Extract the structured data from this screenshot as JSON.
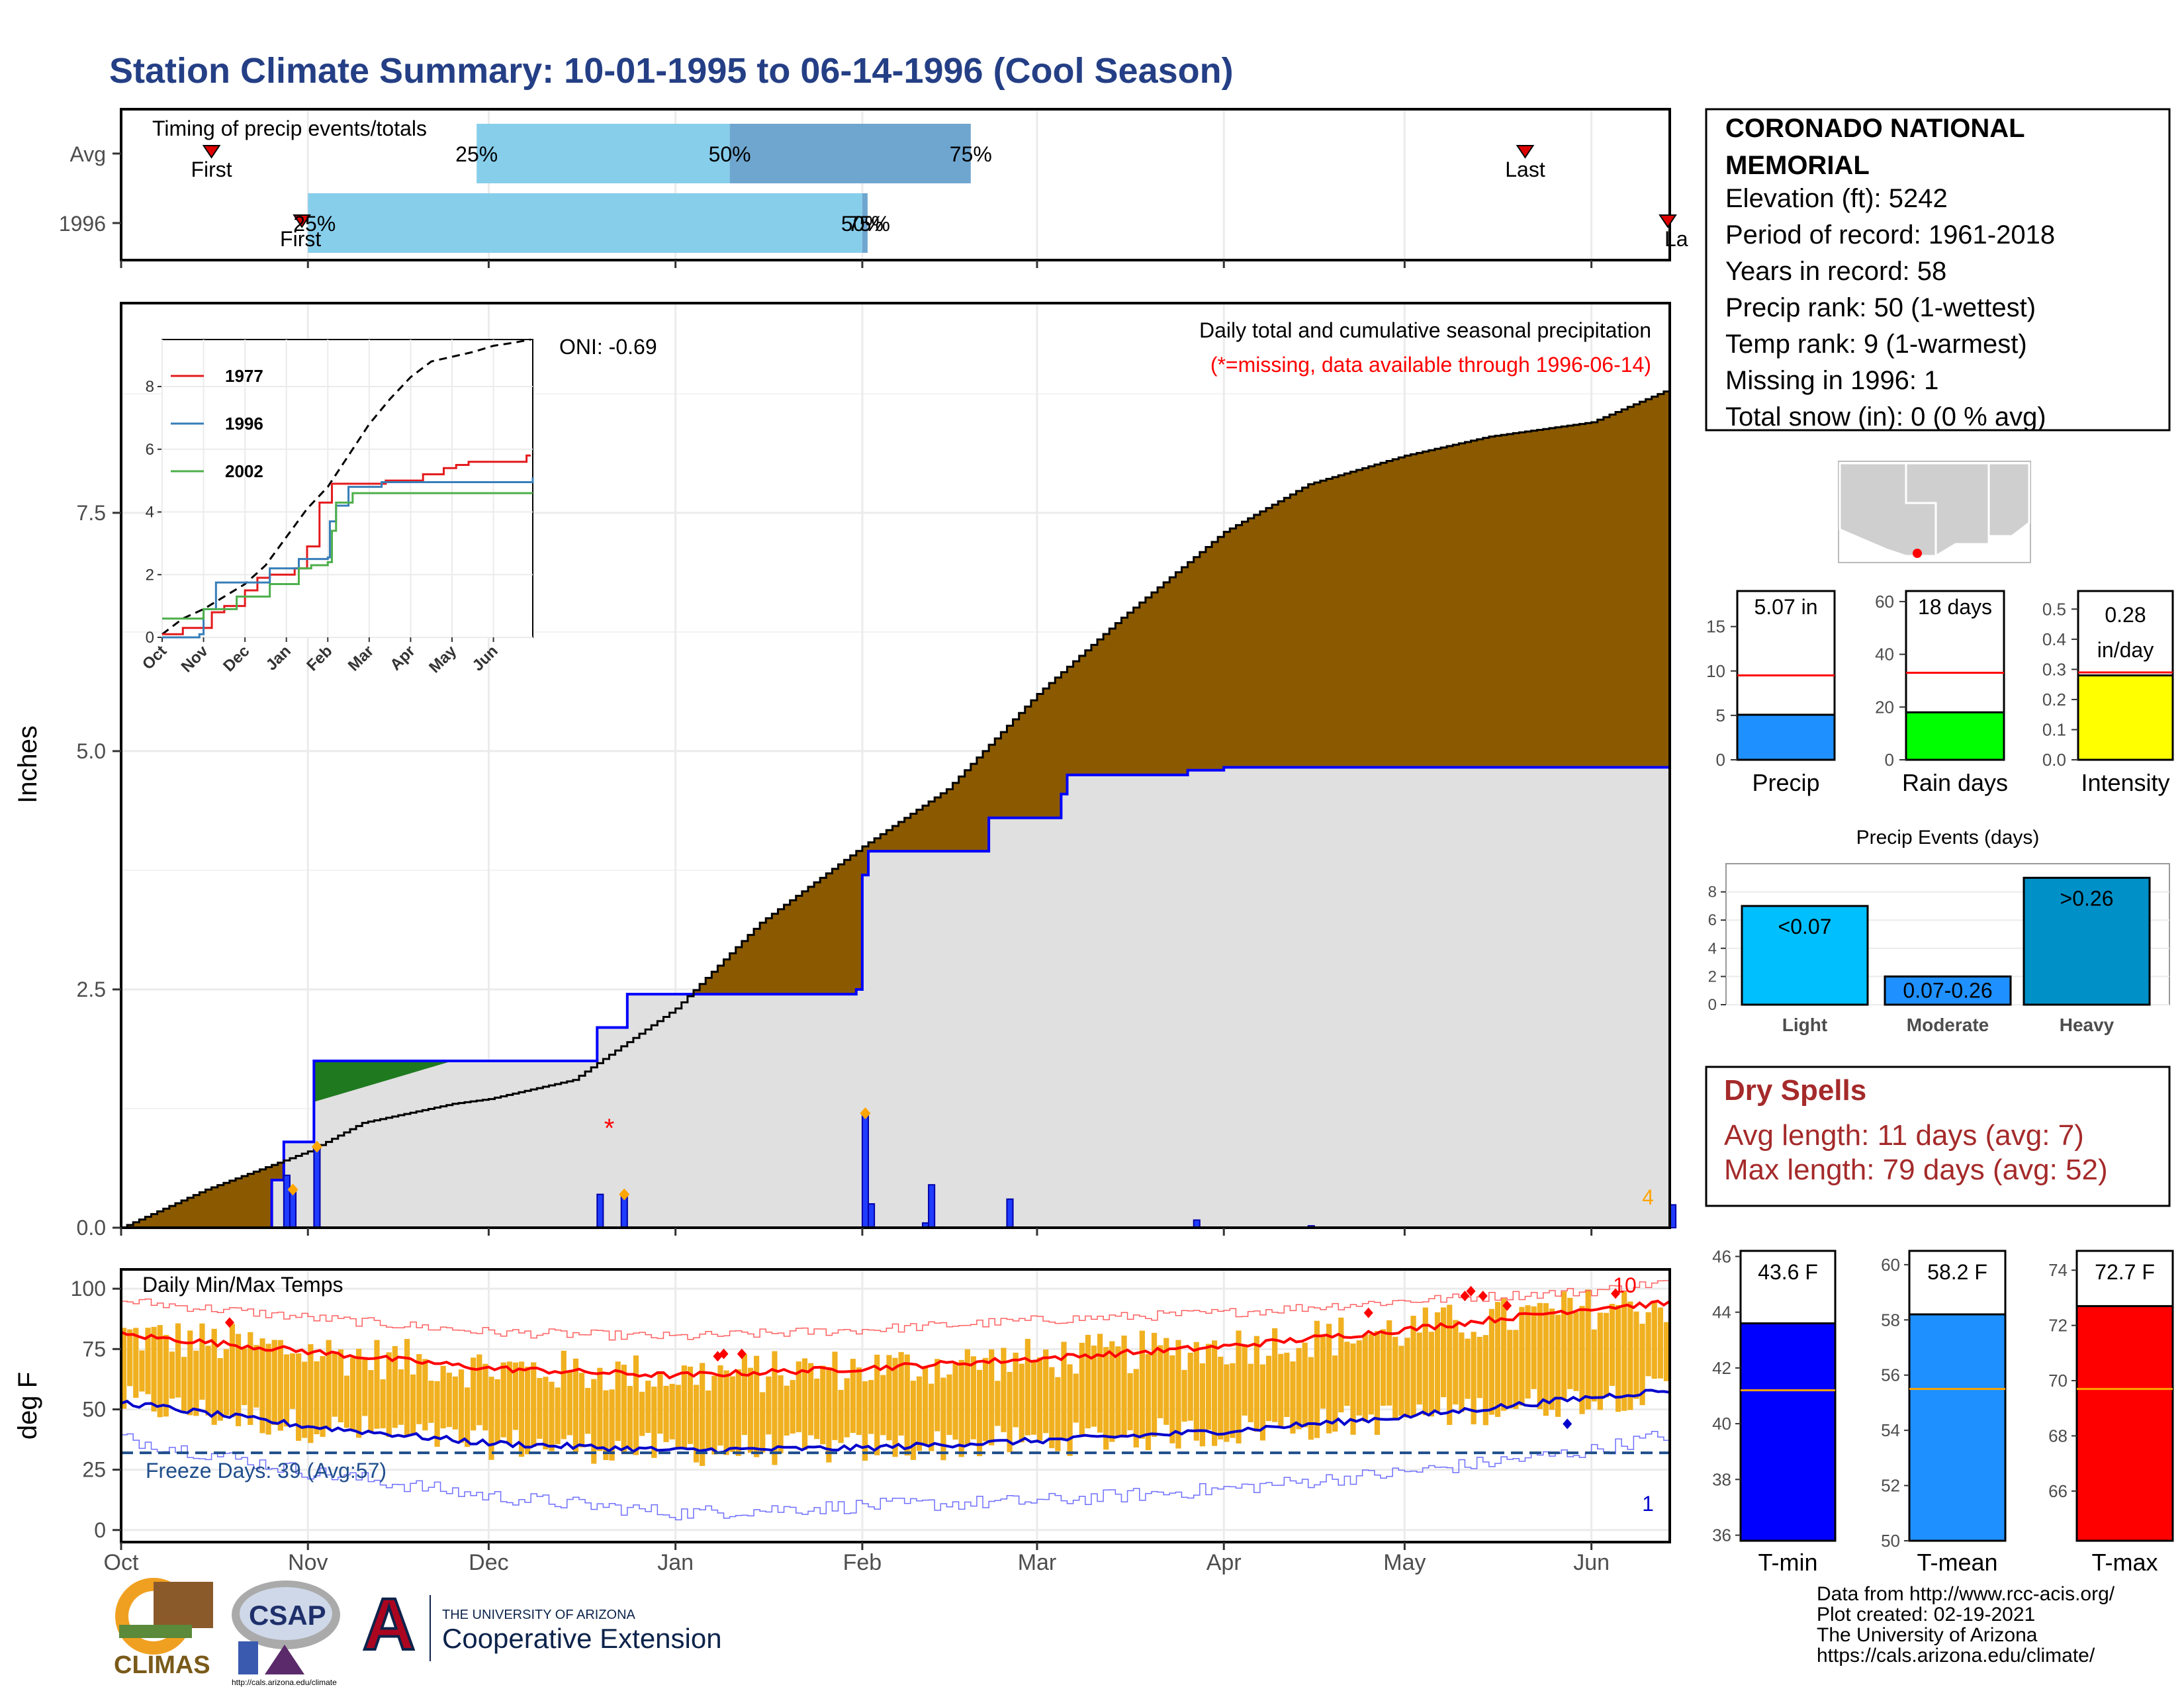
{
  "title": "Station Climate Summary: 10-01-1995 to 06-14-1996 (Cool Season)",
  "months": [
    "Oct",
    "Nov",
    "Dec",
    "Jan",
    "Feb",
    "Mar",
    "Apr",
    "May",
    "Jun"
  ],
  "colors": {
    "title": "#243f85",
    "precip_fill": "#8b5a00",
    "avg_fill": "#e0e0e0",
    "line_1996": "#0000ff",
    "above_avg": "#1f7a1f",
    "bar_light": "#87ceeb",
    "bar_dark": "#6fa6cf",
    "marker": "#ffa500",
    "tmax": "#ff0000",
    "tmin": "#0000cc",
    "range_bar": "#f0b020",
    "freeze_line": "#1f4e8c"
  },
  "timing": {
    "label": "Timing of precip events/totals",
    "rows": [
      "Avg",
      "1996"
    ],
    "avg": {
      "first_label": "First",
      "last_label": "Last",
      "first_date": "1995-10-16",
      "last_date": "1996-05-21",
      "p25_label": "25%",
      "p50_label": "50%",
      "p75_label": "75%",
      "p25_date": "1995-11-29",
      "p50_date": "1996-01-10",
      "p75_date": "1996-02-19"
    },
    "y1996": {
      "first_label": "First",
      "last_label": "La",
      "first_date": "1995-10-31",
      "last_date": "1996-06-14",
      "p25_label": "25%",
      "p50_label": "50%",
      "p75_label": "75%",
      "overlap_label": "50%",
      "p25_date": "1995-11-01",
      "p50_date": "1996-02-01",
      "p75_date": "1996-02-01"
    }
  },
  "precip": {
    "ylabel": "Inches",
    "legend_title": "Daily total and cumulative seasonal precipitation",
    "legend_note": "(*=missing, data available through 1996-06-14)",
    "oni_label": "ONI: -0.69",
    "corner_count": "4",
    "missing_marker": "*",
    "y_ticks": [
      "0.0",
      "2.5",
      "5.0",
      "7.5"
    ],
    "ylim": [
      0,
      9.7
    ],
    "avg_cumulative": [
      [
        "1995-10-01",
        0.0
      ],
      [
        "1995-10-15",
        0.4
      ],
      [
        "1995-11-01",
        0.8
      ],
      [
        "1995-11-10",
        1.1
      ],
      [
        "1995-11-25",
        1.3
      ],
      [
        "1995-12-01",
        1.35
      ],
      [
        "1995-12-15",
        1.55
      ],
      [
        "1996-01-01",
        2.3
      ],
      [
        "1996-01-15",
        3.2
      ],
      [
        "1996-02-01",
        4.0
      ],
      [
        "1996-02-15",
        4.6
      ],
      [
        "1996-03-01",
        5.6
      ],
      [
        "1996-03-15",
        6.4
      ],
      [
        "1996-04-01",
        7.3
      ],
      [
        "1996-04-15",
        7.8
      ],
      [
        "1996-05-01",
        8.1
      ],
      [
        "1996-05-15",
        8.3
      ],
      [
        "1996-06-01",
        8.45
      ],
      [
        "1996-06-14",
        8.8
      ]
    ],
    "cumulative_1996": [
      [
        "1995-10-01",
        0.0
      ],
      [
        "1995-10-25",
        0.0
      ],
      [
        "1995-10-26",
        0.5
      ],
      [
        "1995-10-28",
        0.9
      ],
      [
        "1995-11-01",
        0.9
      ],
      [
        "1995-11-02",
        1.75
      ],
      [
        "1995-11-25",
        1.75
      ],
      [
        "1995-12-18",
        1.75
      ],
      [
        "1995-12-19",
        2.1
      ],
      [
        "1995-12-23",
        2.1
      ],
      [
        "1995-12-24",
        2.45
      ],
      [
        "1996-01-31",
        2.5
      ],
      [
        "1996-02-01",
        3.7
      ],
      [
        "1996-02-02",
        3.95
      ],
      [
        "1996-02-21",
        3.95
      ],
      [
        "1996-02-22",
        4.3
      ],
      [
        "1996-03-05",
        4.55
      ],
      [
        "1996-03-06",
        4.75
      ],
      [
        "1996-03-26",
        4.8
      ],
      [
        "1996-04-01",
        4.83
      ],
      [
        "1996-06-13",
        4.83
      ],
      [
        "1996-06-14",
        5.07
      ]
    ],
    "daily_1996": [
      [
        "1995-10-28",
        0.55
      ],
      [
        "1995-10-29",
        0.4
      ],
      [
        "1995-11-02",
        0.85
      ],
      [
        "1995-12-19",
        0.35
      ],
      [
        "1995-12-23",
        0.35
      ],
      [
        "1996-02-01",
        1.2
      ],
      [
        "1996-02-02",
        0.25
      ],
      [
        "1996-02-11",
        0.05
      ],
      [
        "1996-02-12",
        0.45
      ],
      [
        "1996-02-25",
        0.3
      ],
      [
        "1996-03-27",
        0.08
      ],
      [
        "1996-04-15",
        0.02
      ],
      [
        "1996-06-14",
        0.24
      ]
    ],
    "daily_markers": [
      "1995-10-29",
      "1995-11-02",
      "1995-12-23",
      "1996-02-01"
    ],
    "missing_date": "1995-12-21"
  },
  "inset": {
    "y_ticks": [
      "0",
      "2",
      "4",
      "6",
      "8"
    ],
    "months": [
      "Oct",
      "Nov",
      "Dec",
      "Jan",
      "Feb",
      "Mar",
      "Apr",
      "May",
      "Jun"
    ],
    "series": [
      {
        "name": "1977",
        "color": "#e41a1c",
        "points": [
          [
            0,
            0.1
          ],
          [
            0.5,
            0.3
          ],
          [
            1.2,
            0.8
          ],
          [
            1.5,
            1.0
          ],
          [
            2.0,
            1.5
          ],
          [
            2.3,
            1.9
          ],
          [
            2.6,
            2.0
          ],
          [
            3.2,
            2.2
          ],
          [
            3.5,
            2.9
          ],
          [
            3.8,
            4.3
          ],
          [
            4.1,
            4.9
          ],
          [
            5.0,
            4.9
          ],
          [
            5.4,
            5.0
          ],
          [
            6.0,
            5.0
          ],
          [
            6.3,
            5.2
          ],
          [
            6.8,
            5.4
          ],
          [
            7.1,
            5.5
          ],
          [
            7.4,
            5.6
          ],
          [
            8.5,
            5.6
          ],
          [
            8.8,
            5.8
          ],
          [
            8.9,
            5.8
          ]
        ]
      },
      {
        "name": "1996",
        "color": "#377eb8",
        "points": [
          [
            0,
            0
          ],
          [
            0.9,
            0.1
          ],
          [
            1.0,
            0.9
          ],
          [
            1.3,
            1.75
          ],
          [
            2.4,
            1.75
          ],
          [
            2.6,
            2.2
          ],
          [
            3.3,
            2.5
          ],
          [
            4.0,
            2.55
          ],
          [
            4.05,
            3.7
          ],
          [
            4.2,
            4.2
          ],
          [
            4.5,
            4.8
          ],
          [
            5.2,
            4.8
          ],
          [
            5.3,
            4.95
          ],
          [
            8.9,
            4.95
          ],
          [
            8.95,
            5.1
          ]
        ]
      },
      {
        "name": "2002",
        "color": "#4daf4a",
        "points": [
          [
            0,
            0.6
          ],
          [
            0.9,
            0.6
          ],
          [
            1.0,
            0.9
          ],
          [
            1.7,
            0.9
          ],
          [
            1.8,
            1.3
          ],
          [
            2.5,
            1.3
          ],
          [
            2.6,
            1.7
          ],
          [
            3.2,
            1.7
          ],
          [
            3.3,
            2.2
          ],
          [
            3.6,
            2.3
          ],
          [
            4.0,
            2.4
          ],
          [
            4.1,
            3.4
          ],
          [
            4.2,
            4.3
          ],
          [
            4.6,
            4.6
          ],
          [
            8.95,
            4.6
          ]
        ]
      }
    ],
    "avg_points": [
      [
        0,
        0.1
      ],
      [
        0.5,
        0.6
      ],
      [
        1.0,
        0.9
      ],
      [
        1.5,
        1.3
      ],
      [
        2.0,
        1.7
      ],
      [
        2.5,
        2.3
      ],
      [
        3.0,
        3.2
      ],
      [
        3.5,
        4.1
      ],
      [
        4.0,
        4.8
      ],
      [
        4.5,
        5.8
      ],
      [
        5.0,
        6.8
      ],
      [
        5.5,
        7.6
      ],
      [
        6.0,
        8.3
      ],
      [
        6.5,
        8.8
      ],
      [
        7.0,
        8.95
      ],
      [
        7.5,
        9.1
      ],
      [
        8.0,
        9.3
      ],
      [
        8.5,
        9.4
      ],
      [
        8.9,
        9.5
      ]
    ]
  },
  "temps": {
    "label": "Daily Min/Max Temps",
    "ylabel": "deg F",
    "y_ticks": [
      "0",
      "25",
      "50",
      "75",
      "100"
    ],
    "ylim": [
      -5,
      108
    ],
    "freeze_label": "Freeze Days: 39 (Avg:57)",
    "freeze_value": 32,
    "record_high_count": "10",
    "record_low_count": "1",
    "avg_tmax": [
      [
        "1995-10-01",
        81
      ],
      [
        "1995-11-01",
        74
      ],
      [
        "1995-12-01",
        67
      ],
      [
        "1996-01-01",
        64
      ],
      [
        "1996-02-01",
        67
      ],
      [
        "1996-03-01",
        71
      ],
      [
        "1996-04-01",
        76
      ],
      [
        "1996-05-01",
        83
      ],
      [
        "1996-06-01",
        92
      ],
      [
        "1996-06-14",
        94
      ]
    ],
    "avg_tmin": [
      [
        "1995-10-01",
        53
      ],
      [
        "1995-11-01",
        43
      ],
      [
        "1995-12-01",
        36
      ],
      [
        "1996-01-01",
        33
      ],
      [
        "1996-02-01",
        34
      ],
      [
        "1996-03-01",
        37
      ],
      [
        "1996-04-01",
        41
      ],
      [
        "1996-05-01",
        47
      ],
      [
        "1996-06-01",
        55
      ],
      [
        "1996-06-14",
        58
      ]
    ],
    "rec_high": [
      [
        "1995-10-01",
        95
      ],
      [
        "1995-11-01",
        88
      ],
      [
        "1995-12-01",
        82
      ],
      [
        "1996-01-01",
        80
      ],
      [
        "1996-02-01",
        83
      ],
      [
        "1996-03-01",
        87
      ],
      [
        "1996-04-01",
        90
      ],
      [
        "1996-05-01",
        95
      ],
      [
        "1996-06-01",
        99
      ],
      [
        "1996-06-14",
        103
      ]
    ],
    "rec_low": [
      [
        "1995-10-01",
        38
      ],
      [
        "1995-11-01",
        24
      ],
      [
        "1995-12-01",
        14
      ],
      [
        "1996-01-01",
        7
      ],
      [
        "1996-02-01",
        10
      ],
      [
        "1996-03-01",
        12
      ],
      [
        "1996-04-01",
        17
      ],
      [
        "1996-05-01",
        24
      ],
      [
        "1996-06-01",
        33
      ],
      [
        "1996-06-14",
        40
      ]
    ]
  },
  "station": {
    "name_line1": "CORONADO NATIONAL",
    "name_line2": "MEMORIAL",
    "lines": [
      "Elevation (ft): 5242",
      "Period of record: 1961-2018",
      "Years in record: 58",
      "Precip rank: 50 (1-wettest)",
      "Temp rank: 9 (1-warmest)",
      "Missing in 1996: 1",
      "Total snow (in): 0 (0 % avg)"
    ]
  },
  "summary_bars": [
    {
      "label": "Precip",
      "value_text": "5.07 in",
      "value": 5.07,
      "avg": 9.5,
      "ymax": 19,
      "ticks": [
        "0",
        "5",
        "10",
        "15"
      ],
      "tick_vals": [
        0,
        5,
        10,
        15
      ],
      "color": "#1e90ff"
    },
    {
      "label": "Rain days",
      "value_text": "18 days",
      "value": 18,
      "avg": 33,
      "ymax": 64,
      "ticks": [
        "0",
        "20",
        "40",
        "60"
      ],
      "tick_vals": [
        0,
        20,
        40,
        60
      ],
      "color": "#00ff00"
    },
    {
      "label": "Intensity",
      "value_text": "0.28 in/day",
      "value_text_1": "0.28",
      "value_text_2": "in/day",
      "value": 0.28,
      "avg": 0.29,
      "ymax": 0.56,
      "ticks": [
        "0.0",
        "0.1",
        "0.2",
        "0.3",
        "0.4",
        "0.5"
      ],
      "tick_vals": [
        0,
        0.1,
        0.2,
        0.3,
        0.4,
        0.5
      ],
      "color": "#ffff00"
    }
  ],
  "precip_events": {
    "title": "Precip Events (days)",
    "categories": [
      "Light",
      "Moderate",
      "Heavy"
    ],
    "bar_labels": [
      "<0.07",
      "0.07-0.26",
      ">0.26"
    ],
    "values": [
      7,
      2,
      9
    ],
    "y_ticks": [
      "0",
      "2",
      "4",
      "6",
      "8"
    ],
    "ymax": 10,
    "colors": [
      "#00bfff",
      "#1e90ff",
      "#0090c8"
    ]
  },
  "dry_spells": {
    "title": "Dry Spells",
    "avg_length": "Avg length: 11 days (avg: 7)",
    "max_length": "Max length: 79 days (avg: 52)"
  },
  "temp_bars": [
    {
      "label": "T-min",
      "value_text": "43.6 F",
      "value": 43.6,
      "avg": 41.2,
      "ymin": 35.8,
      "ymax": 46.2,
      "ticks": [
        "36",
        "38",
        "40",
        "42",
        "44",
        "46"
      ],
      "tick_vals": [
        36,
        38,
        40,
        42,
        44,
        46
      ],
      "color": "#0000ff"
    },
    {
      "label": "T-mean",
      "value_text": "58.2 F",
      "value": 58.2,
      "avg": 55.5,
      "ymin": 50,
      "ymax": 60.5,
      "ticks": [
        "50",
        "52",
        "54",
        "56",
        "58",
        "60"
      ],
      "tick_vals": [
        50,
        52,
        54,
        56,
        58,
        60
      ],
      "color": "#1e90ff"
    },
    {
      "label": "T-max",
      "value_text": "72.7 F",
      "value": 72.7,
      "avg": 69.7,
      "ymin": 64.2,
      "ymax": 74.7,
      "ticks": [
        "66",
        "68",
        "70",
        "72",
        "74"
      ],
      "tick_vals": [
        66,
        68,
        70,
        72,
        74
      ],
      "color": "#ff0000"
    }
  ],
  "footer": {
    "lines": [
      "Data from http://www.rcc-acis.org/",
      "Plot created: 02-19-2021",
      "The University of Arizona",
      "https://cals.arizona.edu/climate/"
    ],
    "climas": "CLIMAS",
    "csap": "CSAP",
    "csap_url": "http://cals.arizona.edu/climate",
    "ua_small": "THE UNIVERSITY OF ARIZONA",
    "ua_big": "Cooperative Extension",
    "ua_letter": "A"
  }
}
